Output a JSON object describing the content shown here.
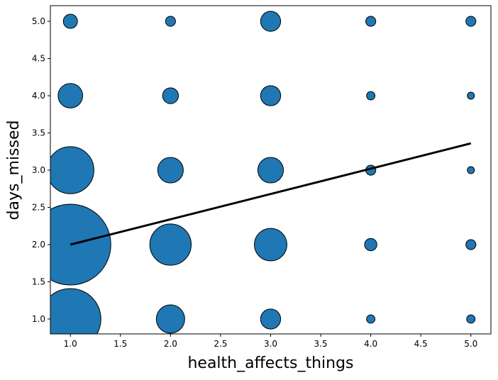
{
  "chart_data": {
    "type": "scatter",
    "x_label": "health_affects_things",
    "y_label": "days_missed",
    "color": "#1f77b4",
    "edge_color": "#000000",
    "x": [
      1,
      1,
      1,
      1,
      1,
      2,
      2,
      2,
      2,
      2,
      3,
      3,
      3,
      3,
      3,
      4,
      4,
      4,
      4,
      4,
      5,
      5,
      5,
      5,
      5
    ],
    "y": [
      5,
      4,
      3,
      2,
      1,
      5,
      4,
      3,
      2,
      1,
      5,
      4,
      3,
      2,
      1,
      5,
      4,
      3,
      2,
      1,
      5,
      4,
      3,
      2,
      1
    ],
    "sizes": [
      4,
      12,
      44,
      130,
      74,
      2,
      5,
      13,
      34,
      16,
      8,
      8,
      13,
      21,
      8,
      2,
      1.4,
      2,
      3,
      1.4,
      2,
      1,
      1,
      2,
      1.4
    ],
    "fit_line": {
      "color": "#000000",
      "x": [
        1,
        5
      ],
      "values": [
        2.0,
        3.36
      ]
    },
    "xlim": [
      0.8,
      5.2
    ],
    "ylim": [
      0.8,
      5.21
    ],
    "xticks": [
      {
        "value": 1,
        "label": "1.0"
      },
      {
        "value": 1.5,
        "label": "1.5"
      },
      {
        "value": 2,
        "label": "2.0"
      },
      {
        "value": 2.5,
        "label": "2.5"
      },
      {
        "value": 3,
        "label": "3.0"
      },
      {
        "value": 3.5,
        "label": "3.5"
      },
      {
        "value": 4,
        "label": "4.0"
      },
      {
        "value": 4.5,
        "label": "4.5"
      },
      {
        "value": 5,
        "label": "5.0"
      }
    ],
    "yticks": [
      {
        "value": 1,
        "label": "1.0"
      },
      {
        "value": 1.5,
        "label": "1.5"
      },
      {
        "value": 2,
        "label": "2.0"
      },
      {
        "value": 2.5,
        "label": "2.5"
      },
      {
        "value": 3,
        "label": "3.0"
      },
      {
        "value": 3.5,
        "label": "3.5"
      },
      {
        "value": 4,
        "label": "4.0"
      },
      {
        "value": 4.5,
        "label": "4.5"
      },
      {
        "value": 5,
        "label": "5.0"
      }
    ]
  }
}
